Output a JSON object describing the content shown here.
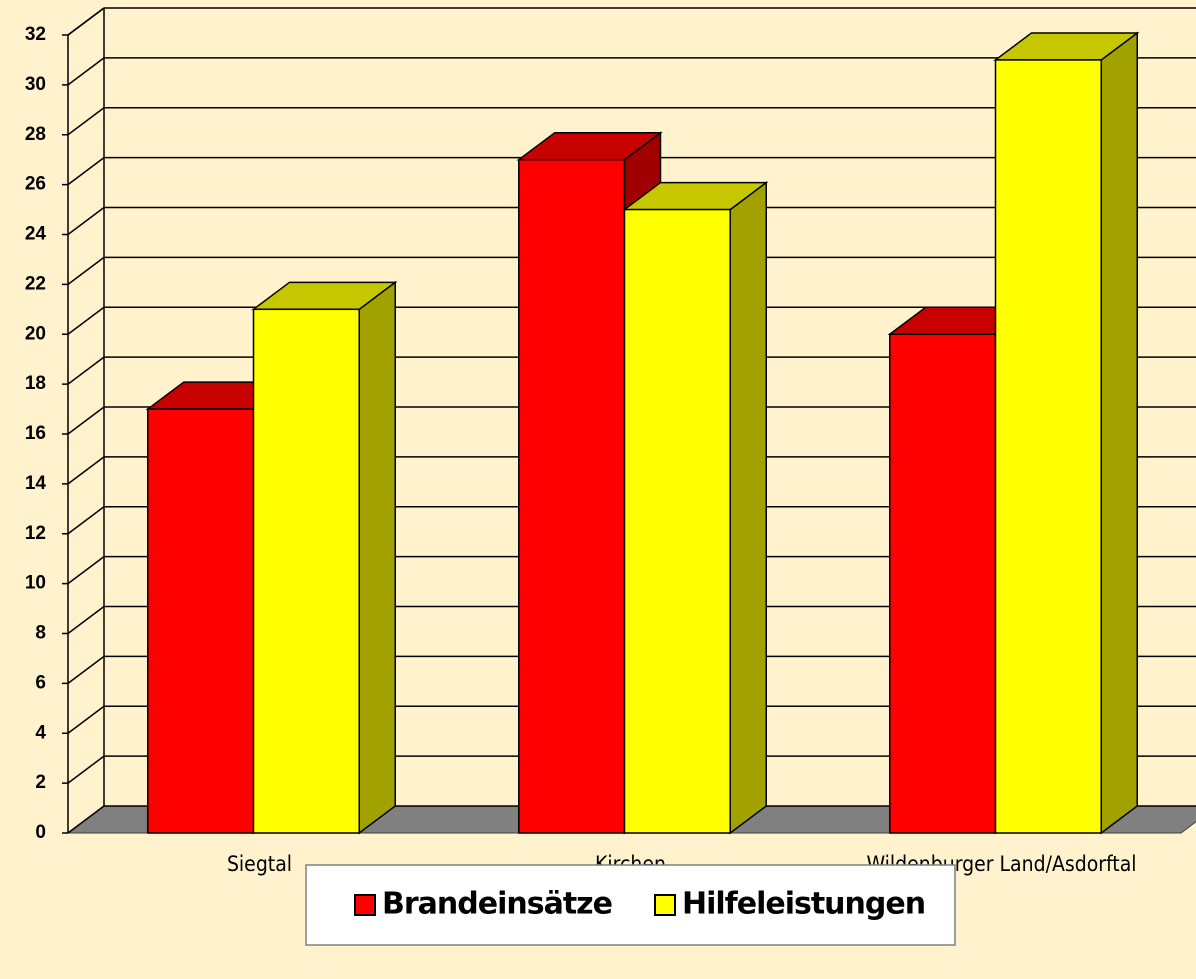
{
  "chart_data": {
    "type": "bar3d",
    "categories": [
      "Siegtal",
      "Kirchen",
      "Wildenburger Land/Asdorftal"
    ],
    "series": [
      {
        "name": "Brandeinsätze",
        "color": "#ff0000",
        "values": [
          17,
          27,
          20
        ]
      },
      {
        "name": "Hilfeleistungen",
        "color": "#ffff00",
        "values": [
          21,
          25,
          31
        ]
      }
    ],
    "ylim": [
      0,
      32
    ],
    "yticks": [
      0,
      2,
      4,
      6,
      8,
      10,
      12,
      14,
      16,
      18,
      20,
      22,
      24,
      26,
      28,
      30,
      32
    ],
    "grid": true,
    "legend": "bottom"
  }
}
